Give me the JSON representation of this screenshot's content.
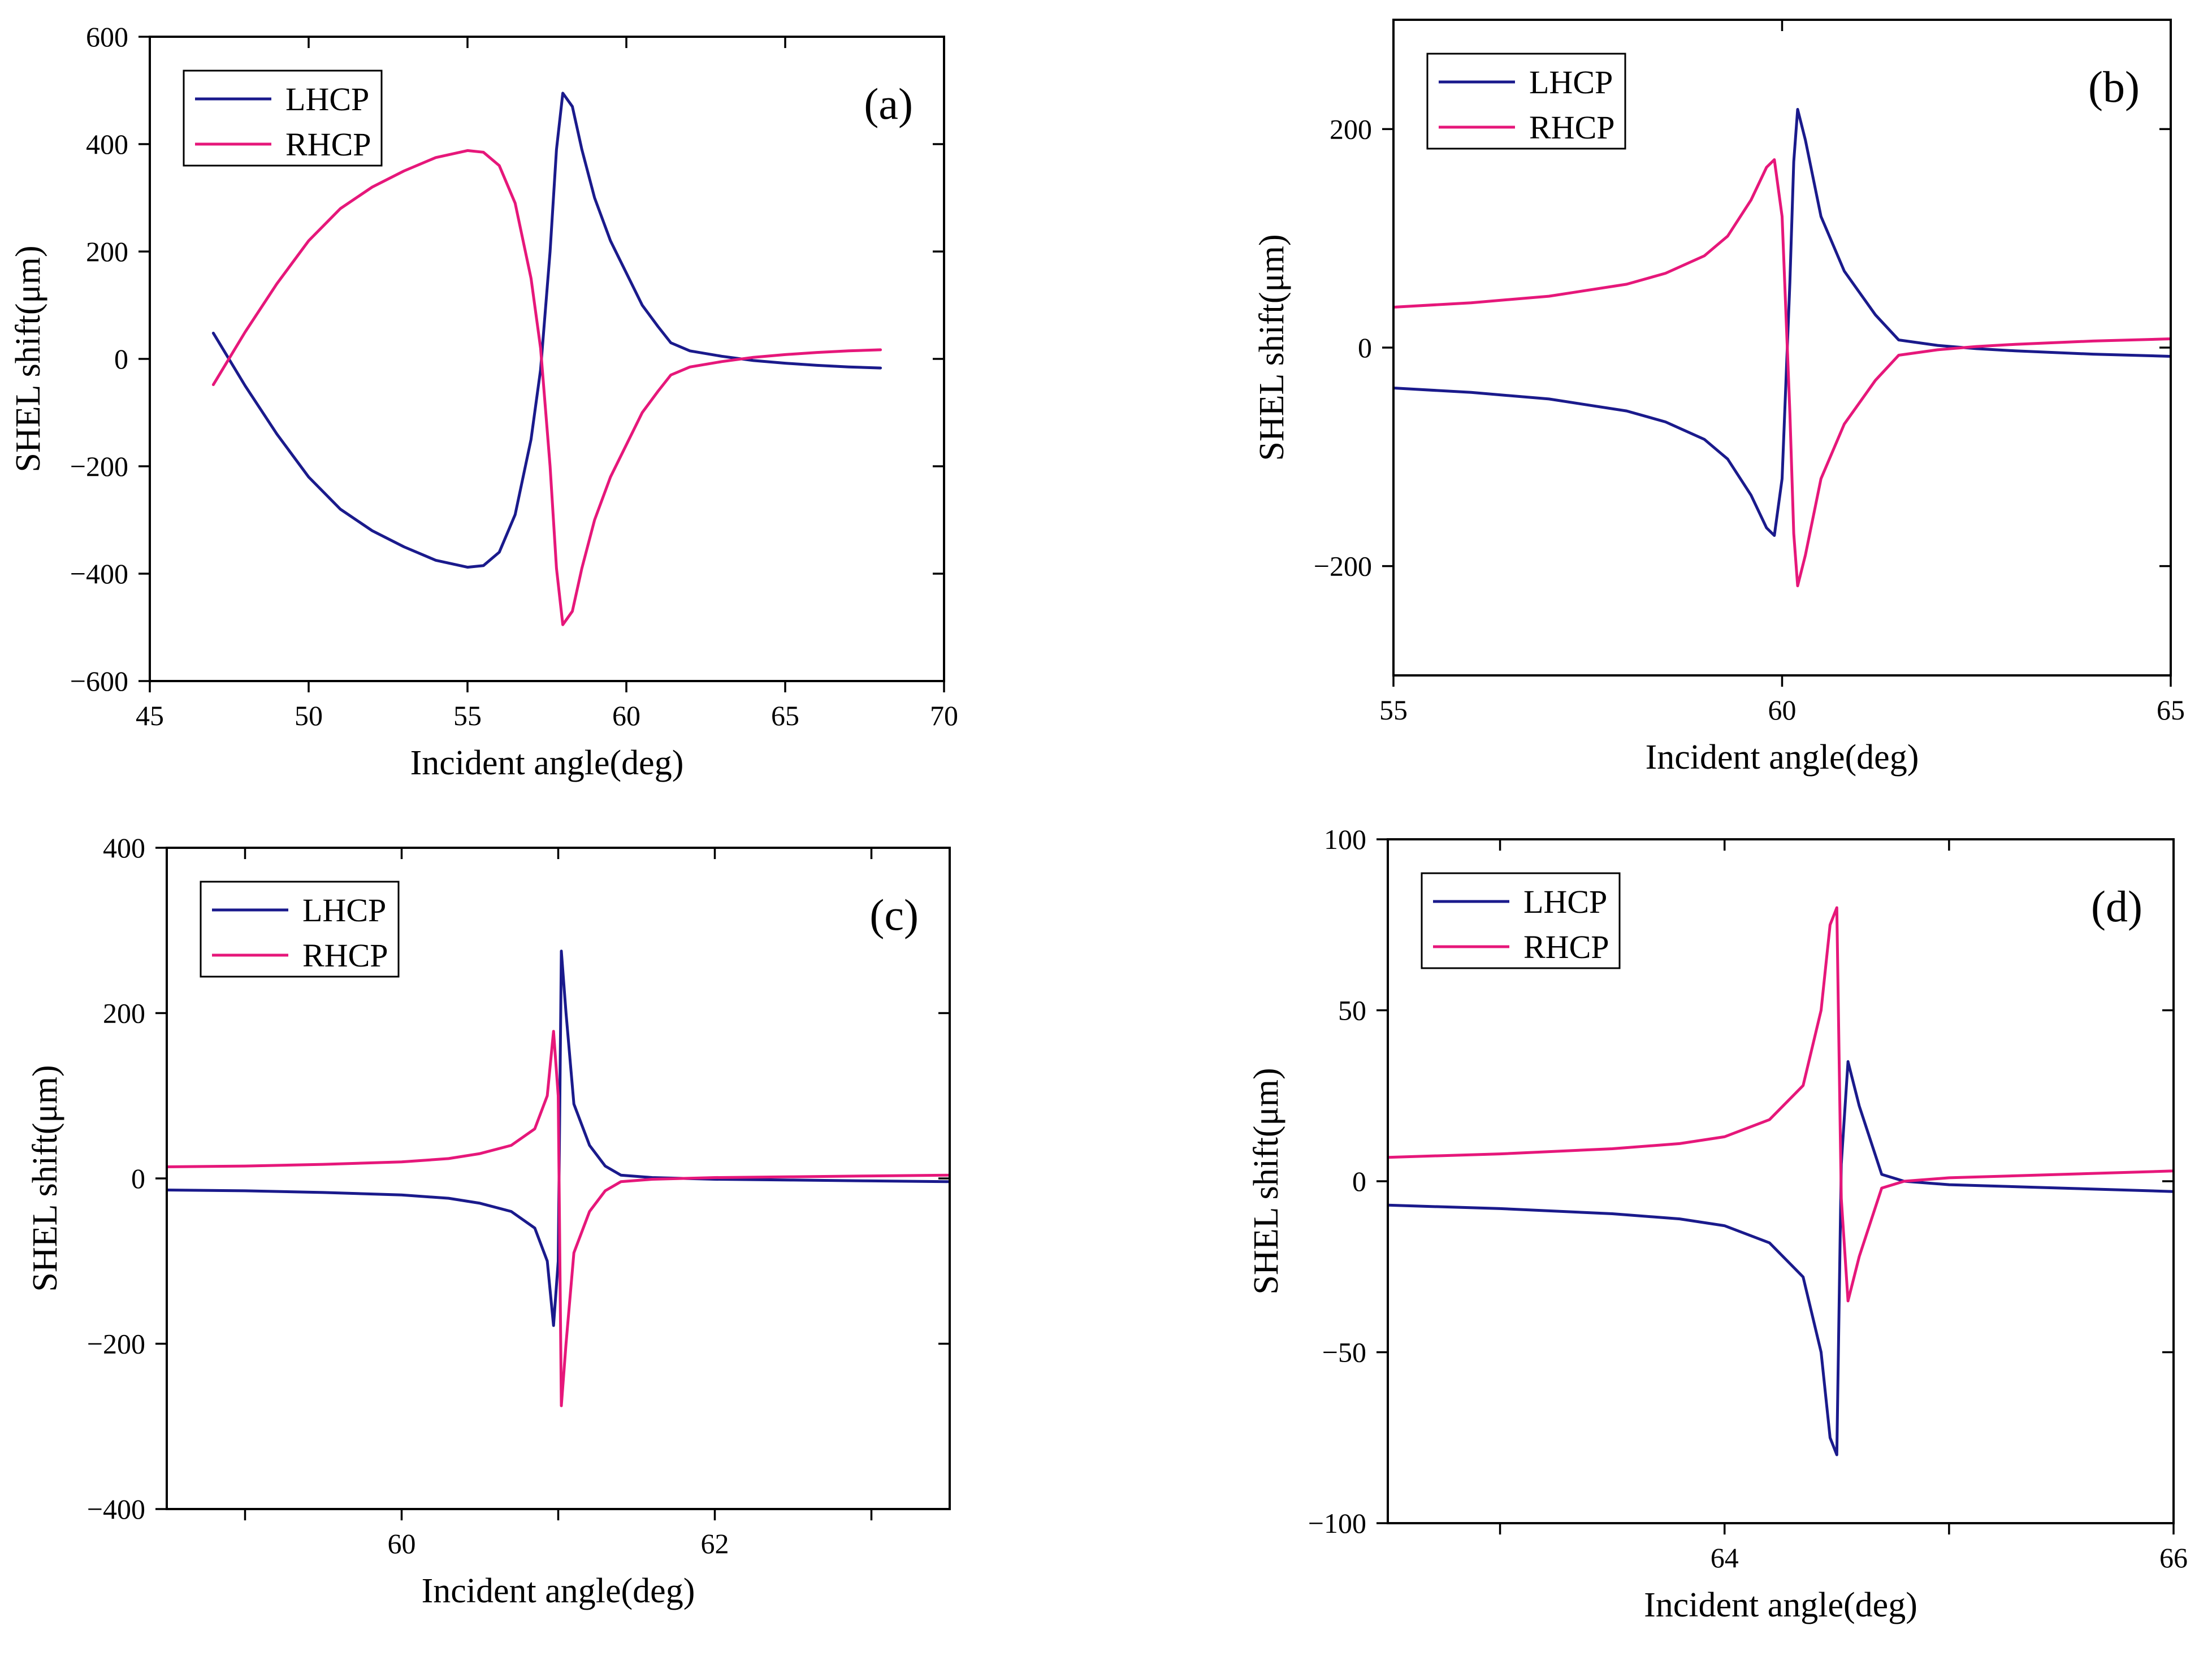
{
  "colors": {
    "lhcp": "#1a1a8c",
    "rhcp": "#e6177a"
  },
  "chart_data": [
    {
      "type": "line",
      "panel_label": "(a)",
      "xlabel": "Incident angle(deg)",
      "ylabel": "SHEL shift(μm)",
      "xlim": [
        45,
        70
      ],
      "ylim": [
        -600,
        600
      ],
      "xticks": [
        45,
        50,
        55,
        60,
        65,
        70
      ],
      "yticks": [
        -600,
        -400,
        -200,
        0,
        200,
        400,
        600
      ],
      "xtick_labels": [
        "45",
        "50",
        "55",
        "60",
        "65",
        "70"
      ],
      "ytick_labels": [
        "−600",
        "−400",
        "−200",
        "0",
        "200",
        "400",
        "600"
      ],
      "legend": [
        "LHCP",
        "RHCP"
      ],
      "legend_position": "top-left",
      "series": [
        {
          "name": "LHCP",
          "color_key": "lhcp",
          "x": [
            47,
            48,
            49,
            50,
            51,
            52,
            53,
            54,
            55,
            55.5,
            56,
            56.5,
            57,
            57.3,
            57.6,
            57.8,
            58,
            58.3,
            58.6,
            59,
            59.5,
            60,
            60.5,
            61,
            61.4,
            62,
            63,
            64,
            65,
            66,
            67,
            68
          ],
          "y": [
            48,
            -50,
            -140,
            -220,
            -280,
            -320,
            -350,
            -375,
            -388,
            -385,
            -360,
            -290,
            -150,
            -20,
            200,
            390,
            495,
            470,
            390,
            300,
            220,
            160,
            100,
            60,
            30,
            15,
            5,
            -3,
            -8,
            -12,
            -15,
            -17
          ]
        },
        {
          "name": "RHCP",
          "color_key": "rhcp",
          "x": [
            47,
            48,
            49,
            50,
            51,
            52,
            53,
            54,
            55,
            55.5,
            56,
            56.5,
            57,
            57.3,
            57.6,
            57.8,
            58,
            58.3,
            58.6,
            59,
            59.5,
            60,
            60.5,
            61,
            61.4,
            62,
            63,
            64,
            65,
            66,
            67,
            68
          ],
          "y": [
            -48,
            50,
            140,
            220,
            280,
            320,
            350,
            375,
            388,
            385,
            360,
            290,
            150,
            20,
            -200,
            -390,
            -495,
            -470,
            -390,
            -300,
            -220,
            -160,
            -100,
            -60,
            -30,
            -15,
            -5,
            3,
            8,
            12,
            15,
            17
          ]
        }
      ]
    },
    {
      "type": "line",
      "panel_label": "(b)",
      "xlabel": "Incident angle(deg)",
      "ylabel": "SHEL shift(μm)",
      "xlim": [
        55,
        65
      ],
      "ylim": [
        -300,
        300
      ],
      "xticks": [
        55,
        60,
        65
      ],
      "yticks": [
        -200,
        0,
        200
      ],
      "xtick_labels": [
        "55",
        "60",
        "65"
      ],
      "ytick_labels": [
        "−200",
        "0",
        "200"
      ],
      "legend": [
        "LHCP",
        "RHCP"
      ],
      "legend_position": "top-left",
      "series": [
        {
          "name": "LHCP",
          "color_key": "lhcp",
          "x": [
            55,
            56,
            57,
            58,
            58.5,
            59,
            59.3,
            59.6,
            59.8,
            59.9,
            60,
            60.1,
            60.15,
            60.2,
            60.3,
            60.5,
            60.8,
            61.2,
            61.5,
            62,
            62.5,
            63,
            64,
            65
          ],
          "y": [
            -37,
            -41,
            -47,
            -58,
            -68,
            -84,
            -102,
            -135,
            -165,
            -172,
            -120,
            60,
            170,
            218,
            190,
            120,
            70,
            30,
            7,
            2,
            -1,
            -3,
            -6,
            -8
          ]
        },
        {
          "name": "RHCP",
          "color_key": "rhcp",
          "x": [
            55,
            56,
            57,
            58,
            58.5,
            59,
            59.3,
            59.6,
            59.8,
            59.9,
            60,
            60.1,
            60.15,
            60.2,
            60.3,
            60.5,
            60.8,
            61.2,
            61.5,
            62,
            62.5,
            63,
            64,
            65
          ],
          "y": [
            37,
            41,
            47,
            58,
            68,
            84,
            102,
            135,
            165,
            172,
            120,
            -60,
            -170,
            -218,
            -190,
            -120,
            -70,
            -30,
            -7,
            -2,
            1,
            3,
            6,
            8
          ]
        }
      ]
    },
    {
      "type": "line",
      "panel_label": "(c)",
      "xlabel": "Incident angle(deg)",
      "ylabel": "SHEL shift(μm)",
      "xlim": [
        58.5,
        63.5
      ],
      "ylim": [
        -400,
        400
      ],
      "xticks": [
        59,
        60,
        61,
        62,
        63
      ],
      "yticks": [
        -400,
        -200,
        0,
        200,
        400
      ],
      "xtick_labels": [
        "",
        "60",
        "",
        "62",
        ""
      ],
      "ytick_labels": [
        "−400",
        "−200",
        "0",
        "200",
        "400"
      ],
      "legend": [
        "LHCP",
        "RHCP"
      ],
      "legend_position": "top-left",
      "series": [
        {
          "name": "LHCP",
          "color_key": "lhcp",
          "x": [
            58.5,
            59,
            59.5,
            60,
            60.3,
            60.5,
            60.7,
            60.85,
            60.93,
            60.97,
            61.0,
            61.02,
            61.05,
            61.1,
            61.2,
            61.3,
            61.4,
            61.6,
            62,
            62.5,
            63,
            63.5
          ],
          "y": [
            -14,
            -15,
            -17,
            -20,
            -24,
            -30,
            -40,
            -60,
            -100,
            -178,
            -100,
            275,
            200,
            90,
            40,
            15,
            4,
            1,
            -1,
            -2,
            -3,
            -4
          ]
        },
        {
          "name": "RHCP",
          "color_key": "rhcp",
          "x": [
            58.5,
            59,
            59.5,
            60,
            60.3,
            60.5,
            60.7,
            60.85,
            60.93,
            60.97,
            61.0,
            61.02,
            61.05,
            61.1,
            61.2,
            61.3,
            61.4,
            61.6,
            62,
            62.5,
            63,
            63.5
          ],
          "y": [
            14,
            15,
            17,
            20,
            24,
            30,
            40,
            60,
            100,
            178,
            100,
            -275,
            -200,
            -90,
            -40,
            -15,
            -4,
            -1,
            1,
            2,
            3,
            4
          ]
        }
      ]
    },
    {
      "type": "line",
      "panel_label": "(d)",
      "xlabel": "Incident angle(deg)",
      "ylabel": "SHEL shift(μm)",
      "xlim": [
        62.5,
        66
      ],
      "ylim": [
        -100,
        100
      ],
      "xticks": [
        63,
        64,
        65,
        66
      ],
      "yticks": [
        -100,
        -50,
        0,
        50,
        100
      ],
      "xtick_labels": [
        "",
        "64",
        "",
        "66"
      ],
      "ytick_labels": [
        "−100",
        "−50",
        "0",
        "50",
        "100"
      ],
      "legend": [
        "LHCP",
        "RHCP"
      ],
      "legend_position": "top-left",
      "series": [
        {
          "name": "LHCP",
          "color_key": "lhcp",
          "x": [
            62.5,
            63,
            63.5,
            63.8,
            64,
            64.2,
            64.35,
            64.43,
            64.47,
            64.5,
            64.52,
            64.55,
            64.6,
            64.7,
            64.8,
            65,
            65.5,
            66
          ],
          "y": [
            -7,
            -8,
            -9.5,
            -11,
            -13,
            -18,
            -28,
            -50,
            -75,
            -80,
            5,
            35,
            22,
            2,
            0,
            -1,
            -2,
            -3
          ]
        },
        {
          "name": "RHCP",
          "color_key": "rhcp",
          "x": [
            62.5,
            63,
            63.5,
            63.8,
            64,
            64.2,
            64.35,
            64.43,
            64.47,
            64.5,
            64.52,
            64.55,
            64.6,
            64.7,
            64.8,
            65,
            65.5,
            66
          ],
          "y": [
            7,
            8,
            9.5,
            11,
            13,
            18,
            28,
            50,
            75,
            80,
            -5,
            -35,
            -22,
            -2,
            0,
            1,
            2,
            3
          ]
        }
      ]
    }
  ]
}
